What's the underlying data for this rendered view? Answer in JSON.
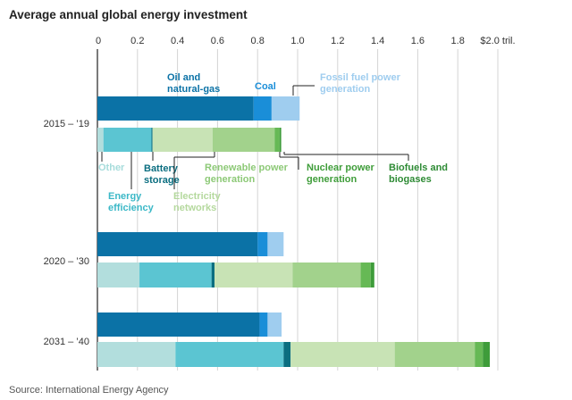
{
  "chart_data": {
    "type": "bar",
    "stacked": true,
    "orientation": "horizontal",
    "title": "Average annual global energy investment",
    "source": "Source: International Energy Agency",
    "xlim": [
      0,
      2.0
    ],
    "ticks": [
      {
        "value": 0,
        "label": "0"
      },
      {
        "value": 0.2,
        "label": "0.2"
      },
      {
        "value": 0.4,
        "label": "0.4"
      },
      {
        "value": 0.6,
        "label": "0.6"
      },
      {
        "value": 0.8,
        "label": "0.8"
      },
      {
        "value": 1.0,
        "label": "1.0"
      },
      {
        "value": 1.2,
        "label": "1.2"
      },
      {
        "value": 1.4,
        "label": "1.4"
      },
      {
        "value": 1.6,
        "label": "1.6"
      },
      {
        "value": 1.8,
        "label": "1.8"
      },
      {
        "value": 2.0,
        "label": "$2.0 tril."
      }
    ],
    "grid": true,
    "categories": [
      "2015 – ’19",
      "2020 – ’30",
      "2031 – ’40"
    ],
    "fossil_series": [
      {
        "name": "Oil and natural-gas",
        "color": "#0b72a6",
        "values": [
          0.78,
          0.8,
          0.81
        ]
      },
      {
        "name": "Coal",
        "color": "#1a8ed8",
        "values": [
          0.09,
          0.05,
          0.04
        ]
      },
      {
        "name": "Fossil fuel power generation",
        "color": "#9fcdef",
        "values": [
          0.14,
          0.08,
          0.07
        ]
      }
    ],
    "transition_series": [
      {
        "name": "Other",
        "color": "#b2dedd",
        "values": [
          0.03,
          0.21,
          0.39
        ]
      },
      {
        "name": "Energy efficiency",
        "color": "#5bc5d2",
        "values": [
          0.24,
          0.36,
          0.54
        ]
      },
      {
        "name": "Battery storage",
        "color": "#0b6e80",
        "values": [
          0.005,
          0.015,
          0.035
        ]
      },
      {
        "name": "Electricity networks",
        "color": "#c8e3b5",
        "values": [
          0.3,
          0.39,
          0.52
        ]
      },
      {
        "name": "Renewable power generation",
        "color": "#a2d28c",
        "values": [
          0.31,
          0.34,
          0.4
        ]
      },
      {
        "name": "Nuclear power generation",
        "color": "#66b955",
        "values": [
          0.025,
          0.05,
          0.04
        ]
      },
      {
        "name": "Biofuels and biogases",
        "color": "#3e9c3a",
        "values": [
          0.008,
          0.018,
          0.035
        ]
      }
    ],
    "annotations": [
      {
        "lines": [
          "Oil and",
          "natural-gas"
        ],
        "color": "#0b72a6"
      },
      {
        "lines": [
          "Coal"
        ],
        "color": "#1a8ed8"
      },
      {
        "lines": [
          "Fossil fuel power",
          "generation"
        ],
        "color": "#9fcdef"
      },
      {
        "lines": [
          "Other"
        ],
        "color": "#a6dcdb"
      },
      {
        "lines": [
          "Energy",
          "efficiency"
        ],
        "color": "#3bb8c7"
      },
      {
        "lines": [
          "Battery",
          "storage"
        ],
        "color": "#0b6e80"
      },
      {
        "lines": [
          "Electricity",
          "networks"
        ],
        "color": "#b5d99e"
      },
      {
        "lines": [
          "Renewable power",
          "generation"
        ],
        "color": "#8dc977"
      },
      {
        "lines": [
          "Nuclear power",
          "generation"
        ],
        "color": "#3f9d3a"
      },
      {
        "lines": [
          "Biofuels and",
          "biogases"
        ],
        "color": "#2e8b35"
      }
    ]
  }
}
